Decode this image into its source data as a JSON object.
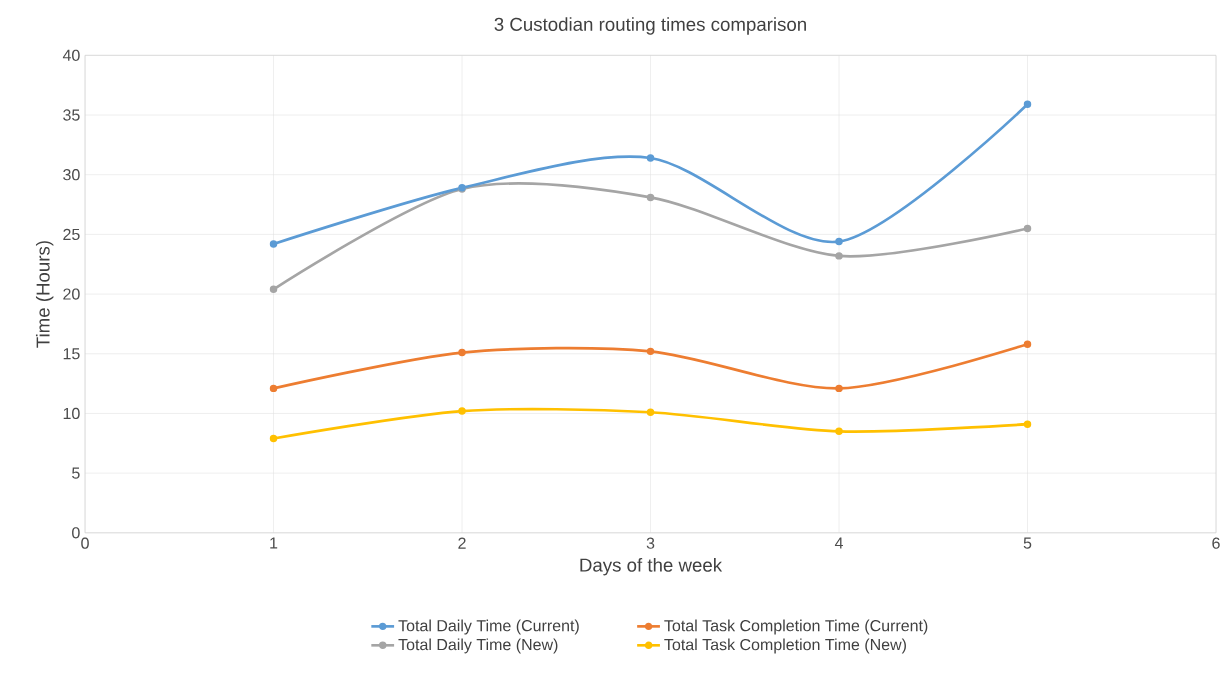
{
  "chart_data": {
    "type": "line",
    "title": "3 Custodian routing times comparison",
    "xlabel": "Days of the week",
    "ylabel": "Time (Hours)",
    "x": [
      1,
      2,
      3,
      4,
      5
    ],
    "series": [
      {
        "name": "Total Daily Time (Current)",
        "color": "#5b9bd5",
        "values": [
          24.2,
          28.9,
          31.4,
          24.4,
          35.9
        ]
      },
      {
        "name": "Total Task Completion Time (Current)",
        "color": "#ed7d31",
        "values": [
          12.1,
          15.1,
          15.2,
          12.1,
          15.8
        ]
      },
      {
        "name": "Total Daily Time (New)",
        "color": "#a5a5a5",
        "values": [
          20.4,
          28.8,
          28.1,
          23.2,
          25.5
        ]
      },
      {
        "name": "Total Task Completion Time (New)",
        "color": "#ffc000",
        "values": [
          7.9,
          10.2,
          10.1,
          8.5,
          9.1
        ]
      }
    ],
    "xlim": [
      0,
      6
    ],
    "xticks": [
      0,
      1,
      2,
      3,
      4,
      5,
      6
    ],
    "ylim": [
      0,
      40
    ],
    "yticks": [
      0,
      5,
      10,
      15,
      20,
      25,
      30,
      35,
      40
    ],
    "grid": true,
    "legend": "bottom",
    "marker": "circle",
    "line_style": "solid"
  }
}
